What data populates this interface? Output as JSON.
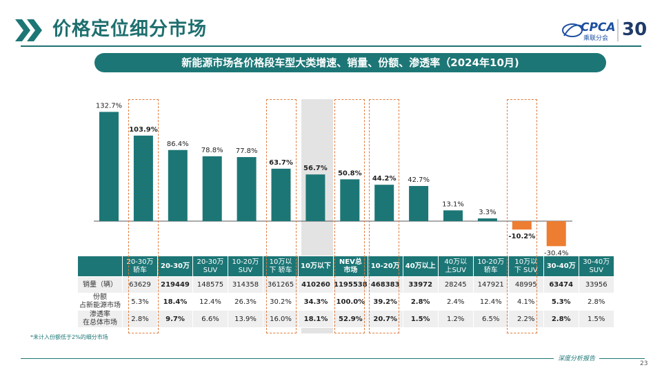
{
  "header": {
    "title": "价格定位细分市场",
    "logo_text": "CPCA",
    "logo_sub": "乘联分会",
    "anniversary": "30"
  },
  "subtitle": "新能源市场各价格段车型大类增速、销量、份额、渗透率（2024年10月)",
  "colors": {
    "teal": "#1d7676",
    "orange": "#ed7d31",
    "highlight": "#e07a3a",
    "nev_shade": "#d9d9d9"
  },
  "chart_data": {
    "type": "bar",
    "categories": [
      "20-30万\n轿车",
      "20-30万",
      "20-30万\nSUV",
      "10-20万\nSUV",
      "10万以\n下轿车",
      "10万以下",
      "NEV总\n市场",
      "10-20万",
      "40万以上",
      "40万以\n上SUV",
      "10-20万\n轿车",
      "10万以\n下SUV",
      "30-40万",
      "30-40万\nSUV"
    ],
    "values": [
      132.7,
      103.9,
      86.4,
      78.8,
      77.8,
      63.7,
      56.7,
      50.8,
      44.2,
      42.7,
      13.1,
      3.3,
      -10.2,
      -30.4
    ],
    "value_labels": [
      "132.7%",
      "103.9%",
      "86.4%",
      "78.8%",
      "77.8%",
      "63.7%",
      "56.7%",
      "50.8%",
      "44.2%",
      "42.7%",
      "13.1%",
      "3.3%",
      "-10.2%",
      "-30.4%"
    ],
    "bold_labels": [
      false,
      true,
      false,
      false,
      false,
      true,
      true,
      true,
      true,
      false,
      false,
      false,
      true,
      false
    ],
    "highlighted": [
      false,
      true,
      false,
      false,
      false,
      true,
      true,
      true,
      true,
      false,
      false,
      false,
      true,
      false
    ]
  },
  "table": {
    "headers": [
      "20-30万\n轿车",
      "20-30万",
      "20-30万\nSUV",
      "10-20万\nSUV",
      "10万以\n下 轿车",
      "10万以下",
      "NEV总\n市场",
      "10-20万",
      "40万以上",
      "40万以\n上SUV",
      "10-20万\n轿车",
      "10万以\n下 SUV",
      "30-40万",
      "30-40万\nSUV"
    ],
    "rows": [
      {
        "label": "销量（辆）",
        "values": [
          "63629",
          "219449",
          "148575",
          "314358",
          "361265",
          "410260",
          "1195538",
          "468383",
          "33972",
          "28245",
          "147921",
          "48995",
          "63474",
          "33956"
        ]
      },
      {
        "label": "份额\n占新能源市场",
        "values": [
          "5.3%",
          "18.4%",
          "12.4%",
          "26.3%",
          "30.2%",
          "34.3%",
          "100.0%",
          "39.2%",
          "2.8%",
          "2.4%",
          "12.4%",
          "4.1%",
          "5.3%",
          "2.8%"
        ]
      },
      {
        "label": "渗透率\n在总体市场",
        "values": [
          "2.8%",
          "9.7%",
          "6.6%",
          "13.9%",
          "16.0%",
          "18.1%",
          "52.9%",
          "20.7%",
          "1.5%",
          "1.2%",
          "6.5%",
          "2.2%",
          "2.8%",
          "1.5%"
        ]
      }
    ]
  },
  "footnote": "*未计入份额低于2%的细分市场",
  "footer": {
    "label": "深度分析报告",
    "page": "23"
  }
}
